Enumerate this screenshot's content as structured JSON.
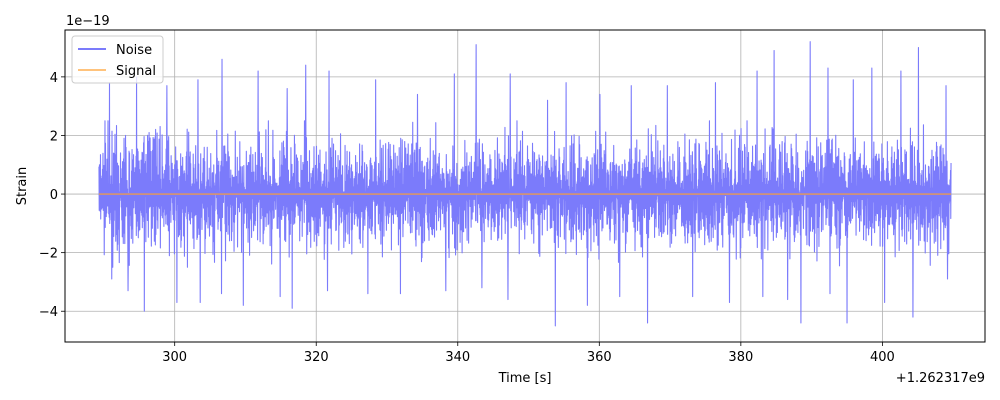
{
  "chart_data": {
    "type": "line",
    "xlabel": "Time [s]",
    "ylabel": "Strain",
    "x_offset_label": "+1.262317e9",
    "y_scale_label": "1e−19",
    "xlim": [
      284.5,
      414.5
    ],
    "ylim": [
      -5.05,
      5.6
    ],
    "x_ticks": [
      300,
      320,
      340,
      360,
      380,
      400
    ],
    "x_tick_labels": [
      "300",
      "320",
      "340",
      "360",
      "380",
      "400"
    ],
    "y_ticks": [
      -4,
      -2,
      0,
      2,
      4
    ],
    "y_tick_labels": [
      "−4",
      "−2",
      "0",
      "2",
      "4"
    ],
    "grid": true,
    "legend_position": "top-left",
    "colors": {
      "noise": "#7b7bfb",
      "signal": "#ff9f2f",
      "grid": "#b0b0b0"
    },
    "series": [
      {
        "name": "Noise",
        "x_range": [
          289.3,
          409.7
        ],
        "typical_envelope": [
          -2.0,
          2.0
        ],
        "peaks_positive": [
          [
            290.8,
            3.8
          ],
          [
            294.6,
            4.0
          ],
          [
            298.9,
            3.7
          ],
          [
            303.3,
            3.9
          ],
          [
            306.7,
            4.6
          ],
          [
            311.8,
            4.2
          ],
          [
            315.9,
            3.6
          ],
          [
            318.5,
            4.4
          ],
          [
            321.8,
            4.2
          ],
          [
            328.4,
            3.9
          ],
          [
            334.3,
            3.4
          ],
          [
            339.5,
            4.1
          ],
          [
            342.6,
            5.1
          ],
          [
            347.4,
            4.1
          ],
          [
            352.7,
            3.2
          ],
          [
            355.3,
            3.8
          ],
          [
            360.1,
            3.4
          ],
          [
            364.5,
            3.7
          ],
          [
            369.6,
            3.7
          ],
          [
            376.4,
            3.8
          ],
          [
            382.3,
            4.2
          ],
          [
            384.7,
            4.9
          ],
          [
            389.8,
            5.2
          ],
          [
            392.3,
            4.3
          ],
          [
            395.9,
            3.9
          ],
          [
            398.5,
            4.3
          ],
          [
            402.6,
            4.2
          ],
          [
            405.1,
            5.0
          ],
          [
            409.0,
            3.7
          ]
        ],
        "peaks_negative": [
          [
            291.1,
            -2.9
          ],
          [
            293.4,
            -3.3
          ],
          [
            295.7,
            -4.0
          ],
          [
            300.3,
            -3.7
          ],
          [
            303.6,
            -3.7
          ],
          [
            306.6,
            -3.4
          ],
          [
            309.7,
            -3.8
          ],
          [
            314.9,
            -3.5
          ],
          [
            316.6,
            -3.9
          ],
          [
            321.6,
            -3.3
          ],
          [
            327.3,
            -3.4
          ],
          [
            331.9,
            -3.4
          ],
          [
            338.3,
            -3.3
          ],
          [
            343.4,
            -3.2
          ],
          [
            347.1,
            -3.6
          ],
          [
            353.8,
            -4.5
          ],
          [
            358.3,
            -3.8
          ],
          [
            362.9,
            -3.5
          ],
          [
            366.8,
            -4.4
          ],
          [
            373.2,
            -3.5
          ],
          [
            378.4,
            -3.7
          ],
          [
            383.1,
            -3.5
          ],
          [
            386.6,
            -3.6
          ],
          [
            388.5,
            -4.4
          ],
          [
            392.6,
            -3.4
          ],
          [
            395.0,
            -4.4
          ],
          [
            400.3,
            -3.7
          ],
          [
            404.3,
            -4.2
          ],
          [
            409.2,
            -2.9
          ]
        ]
      },
      {
        "name": "Signal",
        "x_range": [
          289.3,
          409.7
        ],
        "value": 0
      }
    ]
  }
}
